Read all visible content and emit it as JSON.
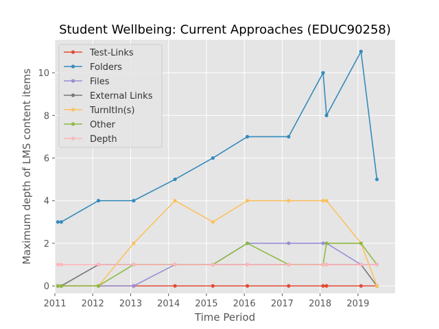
{
  "chart_data": {
    "type": "line",
    "title": "Student Wellbeing: Current Approaches (EDUC90258)",
    "xlabel": "Time Period",
    "ylabel": "Maximum depth of LMS content items",
    "xlim": [
      2011.0,
      2019.98
    ],
    "ylim": [
      -0.35,
      11.55
    ],
    "x_ticks": [
      2011,
      2012,
      2013,
      2014,
      2015,
      2016,
      2017,
      2018,
      2019
    ],
    "x_tick_labels": [
      "2011",
      "2012",
      "2013",
      "2014",
      "2015",
      "2016",
      "2017",
      "2018",
      "2019"
    ],
    "y_ticks": [
      0,
      2,
      4,
      6,
      8,
      10
    ],
    "y_tick_labels": [
      "0",
      "2",
      "4",
      "6",
      "8",
      "10"
    ],
    "grid": true,
    "legend_position": "top-left",
    "series": [
      {
        "name": "Test-Links",
        "color": "#E24A33",
        "x": [
          2011.08,
          2011.17,
          2012.15,
          2013.08,
          2014.17,
          2015.17,
          2016.08,
          2017.17,
          2018.08,
          2018.17,
          2019.08,
          2019.5
        ],
        "y": [
          0,
          0,
          0,
          0,
          0,
          0,
          0,
          0,
          0,
          0,
          0,
          0
        ]
      },
      {
        "name": "Folders",
        "color": "#348ABD",
        "x": [
          2011.08,
          2011.17,
          2012.15,
          2013.08,
          2014.17,
          2015.17,
          2016.08,
          2017.17,
          2018.08,
          2018.17,
          2019.08,
          2019.5
        ],
        "y": [
          3,
          3,
          4,
          4,
          5,
          6,
          7,
          7,
          10,
          8,
          11,
          5
        ]
      },
      {
        "name": "Files",
        "color": "#988ED5",
        "x": [
          2011.08,
          2011.17,
          2012.15,
          2013.08,
          2014.17,
          2015.17,
          2016.08,
          2017.17,
          2018.08,
          2018.17,
          2019.08,
          2019.5
        ],
        "y": [
          0,
          0,
          0,
          0,
          1,
          1,
          2,
          2,
          2,
          2,
          1,
          1
        ]
      },
      {
        "name": "External Links",
        "color": "#777777",
        "x": [
          2011.08,
          2011.17,
          2012.15,
          2013.08,
          2014.17,
          2015.17,
          2016.08,
          2017.17,
          2018.08,
          2018.17,
          2019.08,
          2019.5
        ],
        "y": [
          0,
          0,
          1,
          1,
          1,
          1,
          1,
          1,
          1,
          1,
          1,
          0
        ]
      },
      {
        "name": "TurnItIn(s)",
        "color": "#FBC15E",
        "x": [
          2011.08,
          2011.17,
          2012.15,
          2013.08,
          2014.17,
          2015.17,
          2016.08,
          2017.17,
          2018.08,
          2018.17,
          2019.08,
          2019.5
        ],
        "y": [
          0,
          0,
          0,
          2,
          4,
          3,
          4,
          4,
          4,
          4,
          2,
          0
        ]
      },
      {
        "name": "Other",
        "color": "#8EBA42",
        "x": [
          2011.08,
          2011.17,
          2012.15,
          2013.08,
          2014.17,
          2015.17,
          2016.08,
          2017.17,
          2018.08,
          2018.17,
          2019.08,
          2019.5
        ],
        "y": [
          0,
          0,
          0,
          1,
          1,
          1,
          2,
          1,
          1,
          2,
          2,
          1
        ]
      },
      {
        "name": "Depth",
        "color": "#FFB5B8",
        "x": [
          2011.08,
          2011.17,
          2012.15,
          2013.08,
          2014.17,
          2015.17,
          2016.08,
          2017.17,
          2018.08,
          2018.17,
          2019.08,
          2019.5
        ],
        "y": [
          1,
          1,
          1,
          1,
          1,
          1,
          1,
          1,
          1,
          1,
          1,
          1
        ]
      }
    ]
  }
}
